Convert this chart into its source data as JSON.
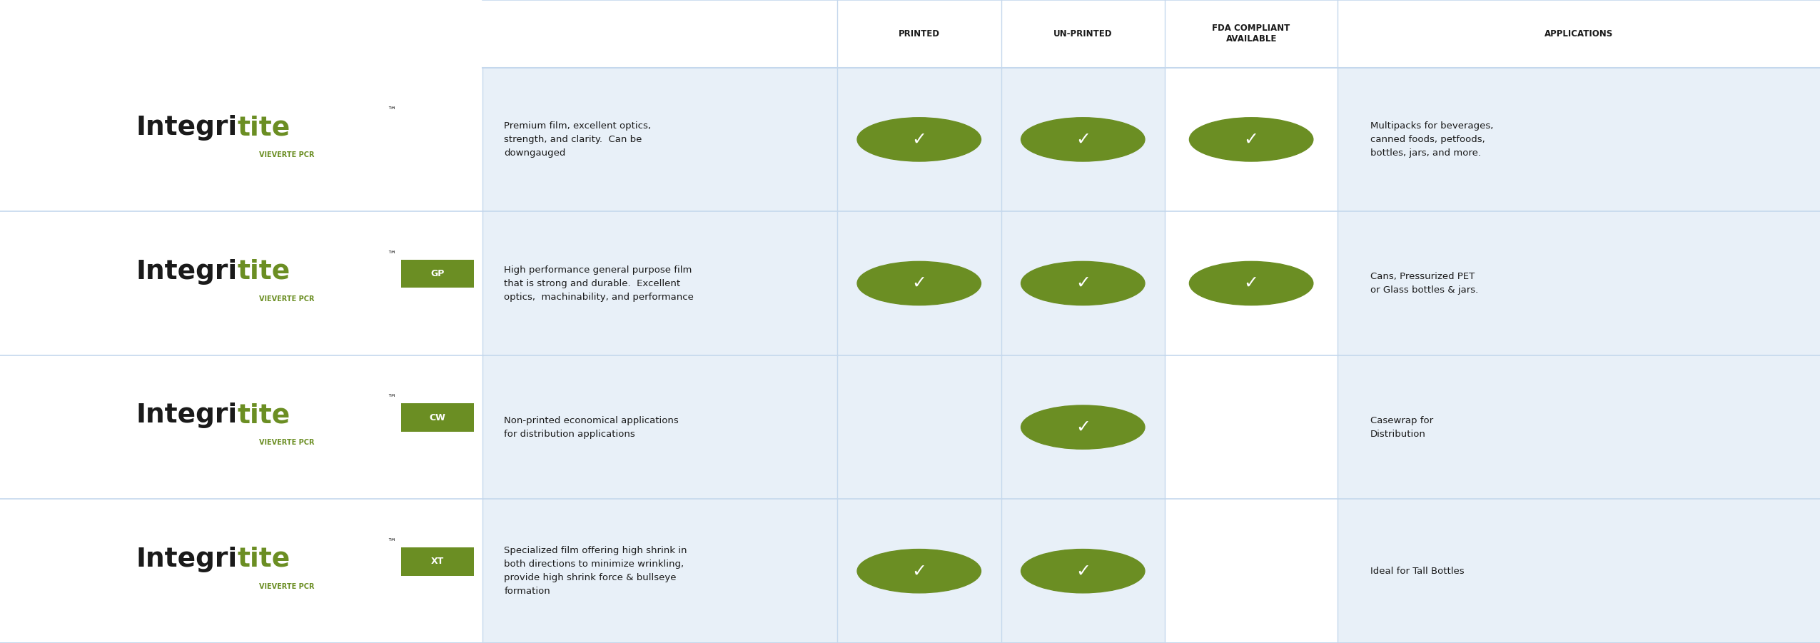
{
  "bg_color": "#ffffff",
  "row_bg_light": "#e8f0f8",
  "row_bg_white": "#ffffff",
  "divider_color": "#c5d8ed",
  "check_color": "#6b8e23",
  "text_dark": "#1a1a1a",
  "text_green": "#6b8e23",
  "header_text_color": "#1a1a1a",
  "rows": [
    {
      "suffix": "",
      "subtitle": "VIEVERTE PCR",
      "description": "Premium film, excellent optics,\nstrength, and clarity.  Can be\ndowngauged",
      "printed": true,
      "unprinted": true,
      "fda": true,
      "applications": "Multipacks for beverages,\ncanned foods, petfoods,\nbottles, jars, and more."
    },
    {
      "suffix": "GP",
      "subtitle": "VIEVERTE PCR",
      "description": "High performance general purpose film\nthat is strong and durable.  Excellent\noptics,  machinability, and performance",
      "printed": true,
      "unprinted": true,
      "fda": true,
      "applications": "Cans, Pressurized PET\nor Glass bottles & jars."
    },
    {
      "suffix": "CW",
      "subtitle": "VIEVERTE PCR",
      "description": "Non-printed economical applications\nfor distribution applications",
      "printed": false,
      "unprinted": true,
      "fda": false,
      "applications": "Casewrap for\nDistribution"
    },
    {
      "suffix": "XT",
      "subtitle": "VIEVERTE PCR",
      "description": "Specialized film offering high shrink in\nboth directions to minimize wrinkling,\nprovide high shrink force & bullseye\nformation",
      "printed": true,
      "unprinted": true,
      "fda": false,
      "applications": "Ideal for Tall Bottles"
    }
  ]
}
